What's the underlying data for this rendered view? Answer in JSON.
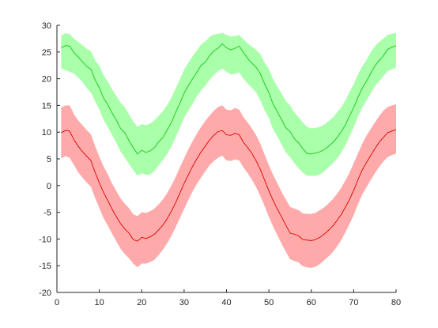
{
  "chart_data": {
    "type": "area",
    "title": "",
    "xlabel": "",
    "ylabel": "",
    "xlim": [
      0,
      80
    ],
    "ylim": [
      -20,
      30
    ],
    "grid": false,
    "legend": "none",
    "x_ticks": [
      0,
      10,
      20,
      30,
      40,
      50,
      60,
      70,
      80
    ],
    "y_ticks": [
      -20,
      -15,
      -10,
      -5,
      0,
      5,
      10,
      15,
      20,
      25,
      30
    ],
    "x_tick_labels": [
      "0",
      "10",
      "20",
      "30",
      "40",
      "50",
      "60",
      "70",
      "80"
    ],
    "y_tick_labels": [
      "-20",
      "-15",
      "-10",
      "-5",
      "0",
      "5",
      "10",
      "15",
      "20",
      "25",
      "30"
    ],
    "series": [
      {
        "color": "#22cc22",
        "band_color": "#aaffaa",
        "x": [
          1,
          2,
          3,
          4,
          5,
          6,
          7,
          8,
          9,
          10,
          11,
          12,
          13,
          14,
          15,
          16,
          17,
          18,
          19,
          20,
          21,
          22,
          23,
          24,
          25,
          26,
          27,
          28,
          29,
          30,
          31,
          32,
          33,
          34,
          35,
          36,
          37,
          38,
          39,
          40,
          41,
          42,
          43,
          44,
          45,
          46,
          47,
          48,
          49,
          50,
          51,
          52,
          53,
          54,
          55,
          56,
          57,
          58,
          59,
          60,
          61,
          62,
          63,
          64,
          65,
          66,
          67,
          68,
          69,
          70,
          71,
          72,
          73,
          74,
          75,
          76,
          77,
          78,
          79,
          80
        ],
        "y": [
          25.8,
          26.2,
          26.1,
          24.9,
          24.1,
          23.2,
          22.3,
          21.8,
          19.8,
          18.3,
          16.4,
          15.1,
          13.6,
          12.3,
          10.7,
          9.9,
          8.4,
          7.1,
          5.9,
          6.6,
          6.2,
          6.5,
          7.1,
          8.2,
          9.0,
          10.4,
          11.8,
          13.7,
          15.4,
          17.3,
          18.7,
          20.0,
          21.2,
          22.5,
          23.1,
          24.3,
          25.2,
          25.7,
          26.5,
          25.8,
          25.4,
          25.7,
          26.1,
          24.9,
          23.8,
          22.9,
          22.1,
          20.9,
          19.0,
          17.4,
          15.2,
          13.8,
          12.3,
          10.8,
          10.1,
          8.8,
          8.0,
          6.9,
          6.0,
          5.9,
          6.1,
          6.3,
          6.7,
          7.3,
          8.0,
          8.9,
          10.0,
          11.3,
          13.0,
          14.6,
          16.5,
          18.2,
          19.5,
          21.0,
          22.4,
          23.4,
          24.3,
          25.5,
          25.9,
          26.2
        ],
        "lower": [
          22.0,
          21.6,
          21.3,
          21.0,
          20.2,
          19.4,
          18.3,
          17.4,
          15.8,
          14.2,
          12.3,
          11.0,
          9.5,
          8.0,
          6.4,
          5.2,
          4.1,
          2.9,
          1.9,
          2.3,
          2.0,
          2.1,
          2.7,
          3.8,
          4.8,
          5.9,
          7.3,
          9.0,
          10.8,
          12.7,
          14.0,
          15.3,
          16.7,
          17.8,
          18.7,
          19.8,
          20.7,
          21.4,
          21.9,
          21.3,
          20.8,
          20.9,
          21.2,
          20.0,
          19.1,
          18.3,
          17.4,
          15.9,
          14.1,
          12.6,
          10.5,
          9.2,
          7.7,
          6.2,
          5.3,
          4.2,
          3.2,
          2.4,
          1.9,
          1.8,
          1.8,
          2.1,
          2.6,
          3.4,
          4.1,
          5.0,
          6.1,
          7.5,
          9.2,
          10.9,
          12.8,
          14.6,
          15.9,
          17.3,
          18.6,
          19.5,
          20.5,
          21.4,
          21.8,
          22.1
        ],
        "upper": [
          28.1,
          28.5,
          28.4,
          27.5,
          26.9,
          26.3,
          25.6,
          25.2,
          23.5,
          22.4,
          20.7,
          19.5,
          18.0,
          16.8,
          15.5,
          14.7,
          13.3,
          12.0,
          11.0,
          11.5,
          11.3,
          11.6,
          12.2,
          13.1,
          13.9,
          15.1,
          16.5,
          18.2,
          19.9,
          21.7,
          23.0,
          24.2,
          25.3,
          26.4,
          27.0,
          27.8,
          28.3,
          28.4,
          28.6,
          28.2,
          27.9,
          28.0,
          28.2,
          27.4,
          26.6,
          26.0,
          25.4,
          24.6,
          23.0,
          21.8,
          19.9,
          18.5,
          17.2,
          15.8,
          15.0,
          13.7,
          12.8,
          11.8,
          11.0,
          10.7,
          10.8,
          11.0,
          11.4,
          12.0,
          12.7,
          13.6,
          14.6,
          15.9,
          17.5,
          19.0,
          20.8,
          22.3,
          23.5,
          24.9,
          26.1,
          26.9,
          27.5,
          28.2,
          28.4,
          28.6
        ]
      },
      {
        "color": "#dd1111",
        "band_color": "#ffaaaa",
        "x": [
          1,
          2,
          3,
          4,
          5,
          6,
          7,
          8,
          9,
          10,
          11,
          12,
          13,
          14,
          15,
          16,
          17,
          18,
          19,
          20,
          21,
          22,
          23,
          24,
          25,
          26,
          27,
          28,
          29,
          30,
          31,
          32,
          33,
          34,
          35,
          36,
          37,
          38,
          39,
          40,
          41,
          42,
          43,
          44,
          45,
          46,
          47,
          48,
          49,
          50,
          51,
          52,
          53,
          54,
          55,
          56,
          57,
          58,
          59,
          60,
          61,
          62,
          63,
          64,
          65,
          66,
          67,
          68,
          69,
          70,
          71,
          72,
          73,
          74,
          75,
          76,
          77,
          78,
          79,
          80
        ],
        "y": [
          9.9,
          10.3,
          10.2,
          8.6,
          7.4,
          6.4,
          5.5,
          4.7,
          2.5,
          0.5,
          -1.3,
          -2.8,
          -4.4,
          -5.8,
          -7.1,
          -8.1,
          -8.9,
          -10.1,
          -10.4,
          -9.7,
          -9.9,
          -9.6,
          -9.1,
          -8.3,
          -7.4,
          -6.2,
          -4.8,
          -3.2,
          -1.4,
          0.4,
          2.0,
          3.6,
          5.0,
          6.3,
          7.4,
          8.5,
          9.4,
          10.1,
          10.3,
          9.5,
          9.4,
          9.8,
          9.5,
          8.1,
          7.1,
          6.0,
          4.6,
          3.0,
          1.0,
          -1.0,
          -2.8,
          -4.4,
          -5.9,
          -7.4,
          -8.9,
          -9.1,
          -9.4,
          -10.1,
          -10.2,
          -10.3,
          -10.1,
          -9.7,
          -9.1,
          -8.4,
          -7.6,
          -6.6,
          -5.5,
          -4.1,
          -2.6,
          -0.9,
          1.1,
          2.9,
          4.3,
          5.6,
          6.9,
          8.1,
          9.0,
          9.9,
          10.2,
          10.5
        ],
        "lower": [
          5.1,
          5.5,
          5.2,
          3.9,
          2.5,
          1.5,
          0.6,
          -0.2,
          -2.3,
          -4.2,
          -6.1,
          -7.5,
          -9.0,
          -10.4,
          -11.8,
          -12.8,
          -13.6,
          -14.6,
          -15.3,
          -14.6,
          -14.6,
          -14.3,
          -13.9,
          -13.0,
          -12.0,
          -10.8,
          -9.4,
          -7.8,
          -6.1,
          -4.4,
          -2.7,
          -1.1,
          0.3,
          1.5,
          2.7,
          3.8,
          4.6,
          5.2,
          5.6,
          4.7,
          4.6,
          4.9,
          4.7,
          3.4,
          2.3,
          1.1,
          -0.3,
          -2.0,
          -3.9,
          -5.9,
          -7.7,
          -9.3,
          -10.9,
          -12.4,
          -13.8,
          -14.1,
          -14.4,
          -15.1,
          -15.3,
          -15.4,
          -15.2,
          -14.7,
          -14.0,
          -13.3,
          -12.5,
          -11.5,
          -10.3,
          -8.8,
          -7.2,
          -5.5,
          -3.5,
          -1.7,
          -0.3,
          1.0,
          2.3,
          3.5,
          4.5,
          5.3,
          5.7,
          6.0
        ],
        "upper": [
          14.6,
          15.0,
          15.0,
          13.4,
          12.2,
          11.3,
          10.4,
          9.6,
          7.4,
          5.4,
          3.6,
          2.1,
          0.4,
          -1.0,
          -2.4,
          -3.4,
          -4.2,
          -5.4,
          -5.7,
          -5.0,
          -5.1,
          -4.8,
          -4.3,
          -3.5,
          -2.6,
          -1.4,
          0.0,
          1.6,
          3.4,
          5.1,
          6.8,
          8.3,
          9.7,
          11.0,
          12.1,
          13.1,
          14.0,
          14.7,
          15.0,
          14.2,
          14.1,
          14.5,
          14.2,
          12.8,
          11.8,
          10.7,
          9.4,
          7.8,
          5.8,
          3.8,
          2.0,
          0.4,
          -1.2,
          -2.6,
          -4.0,
          -4.3,
          -4.6,
          -5.2,
          -5.3,
          -5.3,
          -5.1,
          -4.6,
          -4.1,
          -3.4,
          -2.6,
          -1.6,
          -0.5,
          0.9,
          2.4,
          4.2,
          6.0,
          7.8,
          9.3,
          10.6,
          11.8,
          13.0,
          14.0,
          14.7,
          15.0,
          15.2
        ]
      }
    ]
  }
}
